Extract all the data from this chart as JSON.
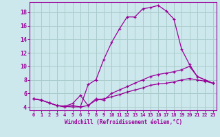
{
  "xlabel": "Windchill (Refroidissement éolien,°C)",
  "bg_color": "#cce8ec",
  "line_color": "#990099",
  "grid_color": "#aacccc",
  "x_ticks": [
    0,
    1,
    2,
    3,
    4,
    5,
    6,
    7,
    8,
    9,
    10,
    11,
    12,
    13,
    14,
    15,
    16,
    17,
    18,
    19,
    20,
    21,
    22,
    23
  ],
  "y_ticks": [
    4,
    6,
    8,
    10,
    12,
    14,
    16,
    18
  ],
  "xlim": [
    -0.5,
    23.5
  ],
  "ylim": [
    3.5,
    19.5
  ],
  "series": [
    {
      "x": [
        0,
        1,
        2,
        3,
        4,
        5,
        6,
        7,
        8,
        9,
        10,
        11,
        12,
        13,
        14,
        15,
        16,
        17,
        18,
        19,
        20,
        21,
        22,
        23
      ],
      "y": [
        5.2,
        5.0,
        4.6,
        4.2,
        4.1,
        4.0,
        4.0,
        7.3,
        8.0,
        11.0,
        13.5,
        15.5,
        17.3,
        17.3,
        18.5,
        18.7,
        19.0,
        18.2,
        17.0,
        12.5,
        10.3,
        8.5,
        8.0,
        7.5
      ]
    },
    {
      "x": [
        0,
        1,
        2,
        3,
        4,
        5,
        6,
        7,
        8,
        9,
        10,
        11,
        12,
        13,
        14,
        15,
        16,
        17,
        18,
        19,
        20,
        21,
        22,
        23
      ],
      "y": [
        5.2,
        5.0,
        4.6,
        4.2,
        4.1,
        4.5,
        5.7,
        4.2,
        5.2,
        5.0,
        6.0,
        6.5,
        7.0,
        7.5,
        8.0,
        8.5,
        8.8,
        9.0,
        9.2,
        9.5,
        10.0,
        8.5,
        8.0,
        7.5
      ]
    },
    {
      "x": [
        0,
        1,
        2,
        3,
        4,
        5,
        6,
        7,
        8,
        9,
        10,
        11,
        12,
        13,
        14,
        15,
        16,
        17,
        18,
        19,
        20,
        21,
        22,
        23
      ],
      "y": [
        5.2,
        5.0,
        4.6,
        4.2,
        4.0,
        4.2,
        4.0,
        4.2,
        5.0,
        5.2,
        5.5,
        5.8,
        6.2,
        6.5,
        6.8,
        7.2,
        7.4,
        7.5,
        7.7,
        8.0,
        8.2,
        8.0,
        7.8,
        7.5
      ]
    }
  ]
}
